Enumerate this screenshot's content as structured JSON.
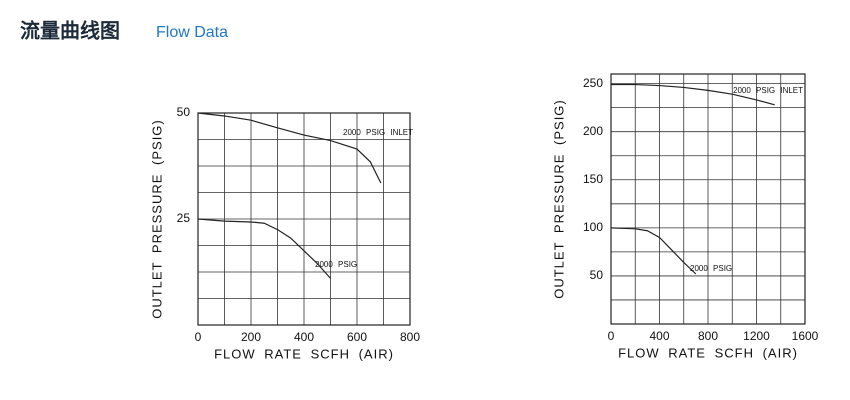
{
  "header": {
    "title": "流量曲线图",
    "subtitle": "Flow Data"
  },
  "chart_data": [
    {
      "type": "line",
      "xlabel": "FLOW RATE SCFH (AIR)",
      "ylabel": "OUTLET PRESSURE (PSIG)",
      "xlim": [
        0,
        800
      ],
      "ylim": [
        0,
        50
      ],
      "xticks": [
        0,
        200,
        400,
        600,
        800
      ],
      "yticks": [
        25,
        50
      ],
      "xgrid": [
        0,
        100,
        200,
        300,
        400,
        500,
        600,
        700,
        800
      ],
      "ygrid": [
        0,
        6.25,
        12.5,
        18.75,
        25,
        31.25,
        37.5,
        43.75,
        50
      ],
      "grid": true,
      "color": "#222",
      "series": [
        {
          "name": "2000 PSIG INLET",
          "x": [
            0,
            100,
            200,
            300,
            400,
            500,
            600,
            650,
            690
          ],
          "values": [
            50,
            49.3,
            48.3,
            46.5,
            44.8,
            43.5,
            41.5,
            38.5,
            33.5
          ]
        },
        {
          "name": "2000 PSIG",
          "x": [
            0,
            100,
            200,
            250,
            300,
            350,
            400,
            450,
            500
          ],
          "values": [
            25,
            24.5,
            24.3,
            24,
            22.5,
            20.5,
            17.5,
            14.5,
            11
          ]
        }
      ]
    },
    {
      "type": "line",
      "xlabel": "FLOW RATE SCFH (AIR)",
      "ylabel": "OUTLET PRESSURE (PSIG)",
      "xlim": [
        0,
        1600
      ],
      "ylim": [
        0,
        260
      ],
      "xticks": [
        0,
        400,
        800,
        1200,
        1600
      ],
      "yticks": [
        50,
        100,
        150,
        200,
        250
      ],
      "xgrid": [
        0,
        200,
        400,
        600,
        800,
        1000,
        1200,
        1400,
        1600
      ],
      "ygrid": [
        0,
        25,
        50,
        75,
        100,
        125,
        150,
        175,
        200,
        225,
        250
      ],
      "grid": true,
      "color": "#222",
      "series": [
        {
          "name": "2000 PSIG INLET",
          "x": [
            0,
            200,
            400,
            600,
            800,
            1000,
            1200,
            1350
          ],
          "values": [
            249,
            249,
            248,
            246,
            243,
            239,
            233,
            228
          ]
        },
        {
          "name": "2000 PSIG",
          "x": [
            0,
            200,
            300,
            400,
            500,
            600,
            700
          ],
          "values": [
            100,
            99,
            97,
            90,
            77,
            64,
            52
          ]
        }
      ]
    }
  ]
}
